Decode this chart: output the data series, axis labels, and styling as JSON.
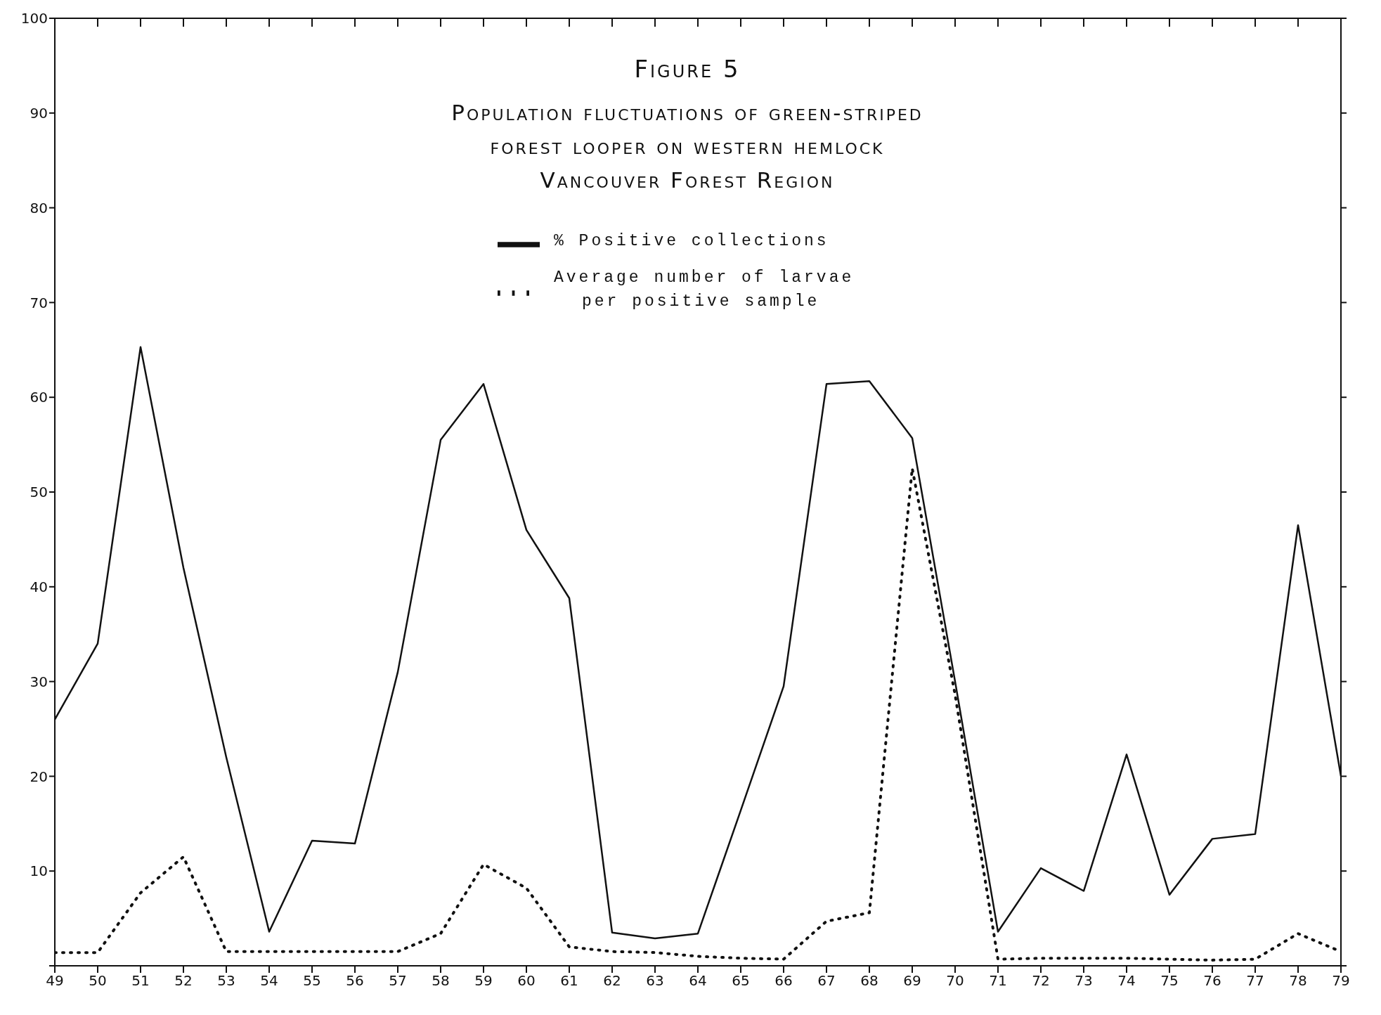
{
  "chart_data": {
    "type": "line",
    "title": "Figure 5",
    "subtitle": "Population fluctuations of green-striped\nforest looper on western hemlock\nVancouver Forest Region",
    "x": [
      49,
      50,
      51,
      52,
      53,
      54,
      55,
      56,
      57,
      58,
      59,
      60,
      61,
      62,
      63,
      64,
      65,
      66,
      67,
      68,
      69,
      70,
      71,
      72,
      73,
      74,
      75,
      76,
      77,
      78,
      79
    ],
    "series": [
      {
        "name": "% Positive collections",
        "color": "#111111",
        "line_style": "solid",
        "values": [
          26,
          34,
          65.3,
          42,
          22,
          3.6,
          13.2,
          12.9,
          31,
          55.5,
          61.4,
          46,
          38.8,
          3.5,
          2.9,
          3.4,
          16.4,
          29.5,
          61.4,
          61.7,
          55.7,
          30,
          3.6,
          10.3,
          7.9,
          22.3,
          7.5,
          13.4,
          13.9,
          46.5,
          20
        ]
      },
      {
        "name": "Average number of larvae\nper positive sample",
        "color": "#111111",
        "line_style": "dotted",
        "values": [
          1.4,
          1.4,
          7.7,
          11.5,
          1.5,
          1.5,
          1.5,
          1.5,
          1.5,
          3.4,
          10.7,
          8.2,
          2,
          1.5,
          1.4,
          1,
          0.8,
          0.7,
          4.7,
          5.6,
          52.5,
          28.6,
          0.7,
          0.8,
          0.8,
          0.8,
          0.7,
          0.6,
          0.7,
          3.4,
          1.5
        ]
      }
    ],
    "xlim": [
      49,
      79
    ],
    "xticks": [
      49,
      50,
      51,
      52,
      53,
      54,
      55,
      56,
      57,
      58,
      59,
      60,
      61,
      62,
      63,
      64,
      65,
      66,
      67,
      68,
      69,
      70,
      71,
      72,
      73,
      74,
      75,
      76,
      77,
      78,
      79
    ],
    "ylim": [
      0,
      100
    ],
    "yticks": [
      {
        "value": 0,
        "label": null
      },
      10,
      20,
      30,
      40,
      50,
      60,
      70,
      80,
      90,
      100
    ],
    "grid": false,
    "legend": "top",
    "marker": "none"
  }
}
